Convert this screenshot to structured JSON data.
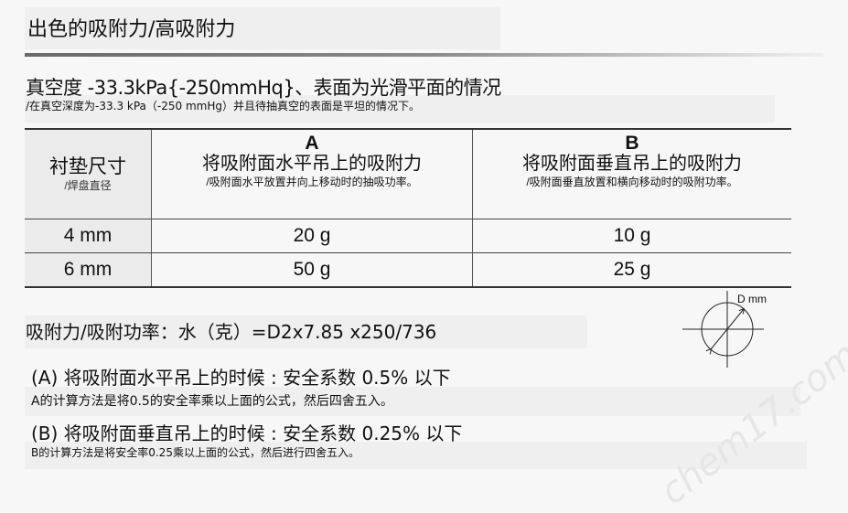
{
  "title": "出色的吸附力/高吸附力",
  "subtitle": "真空度 -33.3kPa{-250mmHq}、表面为光滑平面的情况",
  "subtitle_note": "/在真空深度为-33.3 kPa（-250 mmHg）并且待抽真空的表面是平坦的情况下。",
  "table": {
    "col0": {
      "label": "衬垫尺寸",
      "note": "/焊盘直径"
    },
    "colA": {
      "letter": "A",
      "label": "将吸附面水平吊上的吸附力",
      "note": "/吸附面水平放置并向上移动时的抽吸功率。"
    },
    "colB": {
      "letter": "B",
      "label": "将吸附面垂直吊上的吸附力",
      "note": "/吸附面垂直放置和横向移动时的吸附功率。"
    },
    "rows": [
      {
        "size": "4 mm",
        "a": "20 g",
        "b": "10 g"
      },
      {
        "size": "6 mm",
        "a": "50 g",
        "b": "25 g"
      }
    ]
  },
  "formula": "吸附力/吸附功率：水（克）=D2x7.85 x250/736",
  "diagram_label": "D mm",
  "note_a": {
    "line": "(A) 将吸附面水平吊上的时候 : 安全系数 0.5% 以下",
    "detail": "A的计算方法是将0.5的安全率乘以上面的公式，然后四舍五入。"
  },
  "note_b": {
    "line": "(B) 将吸附面垂直吊上的时候 : 安全系数 0.25% 以下",
    "detail": "B的计算方法是将安全率0.25乘以上面的公式，然后进行四舍五入。"
  },
  "watermark": "chem17.com"
}
